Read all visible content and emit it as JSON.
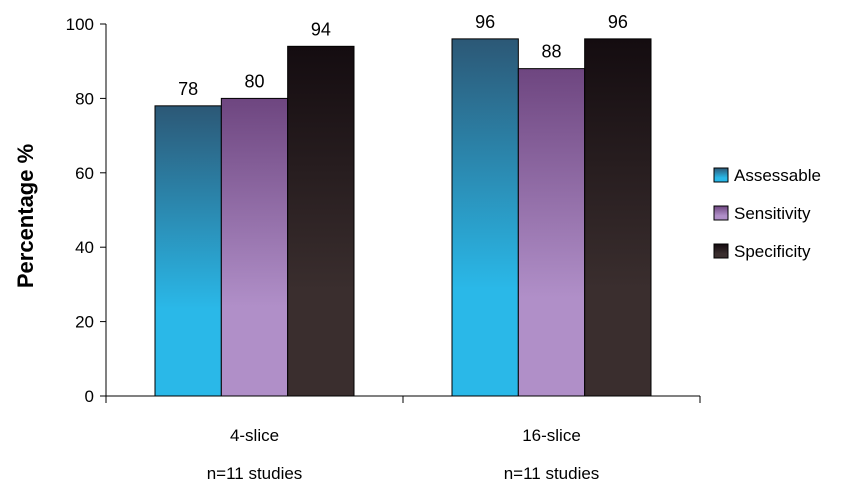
{
  "chart_data": {
    "type": "bar",
    "title": "",
    "xlabel": "",
    "ylabel": "Percentage %",
    "ylim": [
      0,
      100
    ],
    "yticks": [
      0,
      20,
      40,
      60,
      80,
      100
    ],
    "categories": [
      "4-slice",
      "16-slice"
    ],
    "category_sublabels": [
      "n=11 studies",
      "n=11 studies"
    ],
    "series": [
      {
        "name": "Assessable",
        "values": [
          78,
          96
        ],
        "color": "#2ab8e8",
        "color_dark": "#2c5876"
      },
      {
        "name": "Sensitivity",
        "values": [
          80,
          88
        ],
        "color": "#b08fc8",
        "color_dark": "#6e4680"
      },
      {
        "name": "Specificity",
        "values": [
          94,
          96
        ],
        "color": "#3a2e2e",
        "color_dark": "#140c10"
      }
    ],
    "data_labels": true,
    "grid": false,
    "legend_position": "right"
  }
}
